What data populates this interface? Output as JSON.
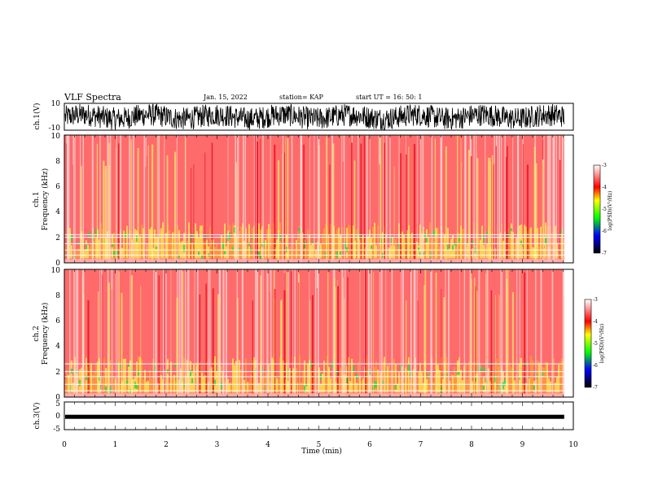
{
  "header": {
    "title": "VLF Spectra",
    "date": "Jan. 15, 2022",
    "station": "station= KAP",
    "start": "start UT =  16: 50: 1"
  },
  "panels": {
    "ch1": {
      "ylabel": "ch.1(V)",
      "ticks": [
        "10",
        "-10"
      ]
    },
    "spec1": {
      "ylabel_line1": "ch.1",
      "ylabel_line2": "Frequency (kHz)",
      "ticks": [
        "0",
        "2",
        "4",
        "6",
        "8",
        "10"
      ]
    },
    "spec2": {
      "ylabel_line1": "ch.2",
      "ylabel_line2": "Frequency (kHz)",
      "ticks": [
        "0",
        "2",
        "4",
        "6",
        "8",
        "10"
      ]
    },
    "ch3": {
      "ylabel": "ch.3(V)",
      "ticks": [
        "5",
        "0",
        "-5"
      ]
    },
    "xaxis": {
      "label": "Time (min)",
      "ticks": [
        "0",
        "1",
        "2",
        "3",
        "4",
        "5",
        "6",
        "7",
        "8",
        "9",
        "10"
      ]
    }
  },
  "colorbar": {
    "label": "log(PSD)(V²/Hz)",
    "ticks": [
      "-3",
      "-4",
      "-5",
      "-6",
      "-7"
    ],
    "colors": [
      "#ffffff",
      "#ff0000",
      "#ffff00",
      "#00ff00",
      "#0000ff",
      "#000000"
    ]
  },
  "chart_data": [
    {
      "type": "line",
      "title": "ch.1(V)",
      "xlabel": "Time (min)",
      "ylabel": "ch.1(V)",
      "xlim": [
        0,
        10
      ],
      "ylim": [
        -10,
        10
      ],
      "data_extent_x": [
        0,
        9.82
      ],
      "note_series": "noisy waveform filling roughly -8 to 9 V"
    },
    {
      "type": "heatmap",
      "title": "ch.1 spectrogram",
      "xlabel": "Time (min)",
      "ylabel": "Frequency (kHz)",
      "xlim": [
        0,
        10
      ],
      "ylim": [
        0,
        10
      ],
      "colorbar_range": [
        -7,
        -3
      ],
      "bands_kHz": [
        0.6,
        1.0,
        1.5,
        2.0,
        2.2
      ]
    },
    {
      "type": "heatmap",
      "title": "ch.2 spectrogram",
      "xlabel": "Time (min)",
      "ylabel": "Frequency (kHz)",
      "xlim": [
        0,
        10
      ],
      "ylim": [
        0,
        10
      ],
      "colorbar_range": [
        -7,
        -3
      ],
      "bands_kHz": [
        0.5,
        1.0,
        1.6,
        2.0,
        2.6
      ]
    },
    {
      "type": "line",
      "title": "ch.3(V)",
      "xlabel": "Time (min)",
      "ylabel": "ch.3(V)",
      "xlim": [
        0,
        10
      ],
      "ylim": [
        -5,
        5
      ],
      "data_extent_x": [
        0,
        9.82
      ],
      "level_V": -0.5
    }
  ]
}
